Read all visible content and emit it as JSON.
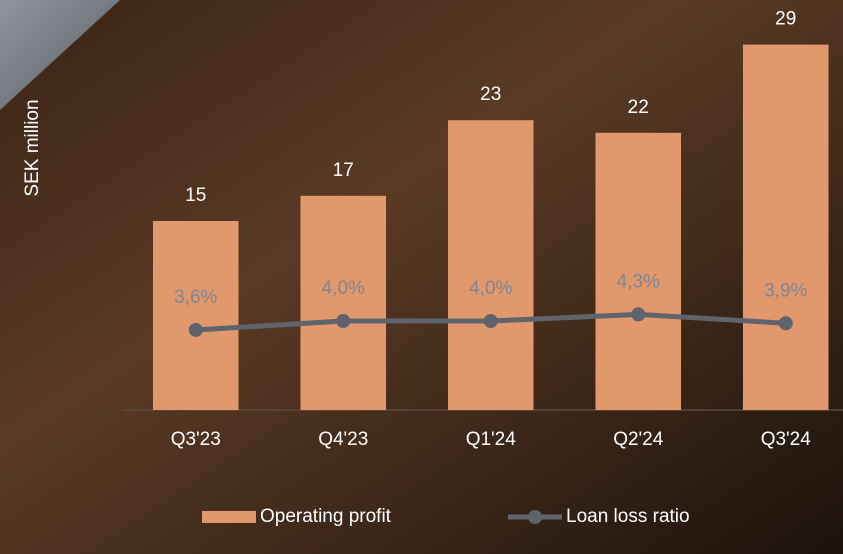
{
  "chart_data": {
    "type": "bar",
    "y_label": "SEK million",
    "categories": [
      "Q3'23",
      "Q4'23",
      "Q1'24",
      "Q2'24",
      "Q3'24"
    ],
    "series": [
      {
        "name": "Operating profit",
        "type": "bar",
        "color": "#e0986c",
        "values": [
          15,
          17,
          23,
          22,
          29
        ]
      },
      {
        "name": "Loan loss ratio",
        "type": "line",
        "axis": "y2",
        "color": "#5f636b",
        "values": [
          3.6,
          4.0,
          4.0,
          4.3,
          3.9
        ],
        "value_labels": [
          "3,6%",
          "4,0%",
          "4,0%",
          "4,3%",
          "3,9%"
        ]
      }
    ],
    "ylim": [
      0,
      30
    ],
    "y2lim": [
      0,
      17
    ],
    "legend": "bottom"
  }
}
